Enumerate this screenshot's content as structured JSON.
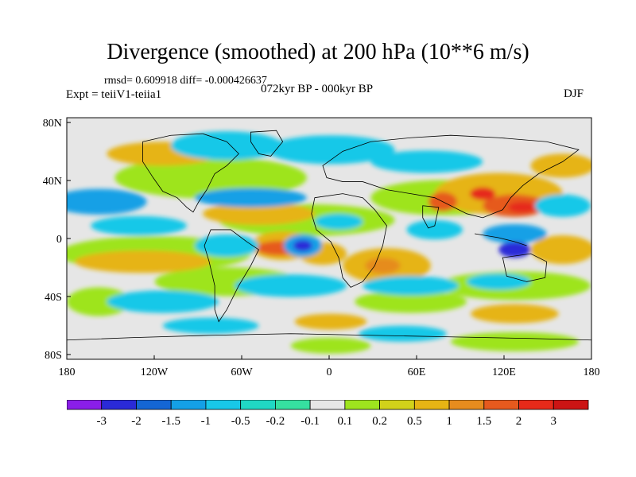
{
  "title": "Divergence (smoothed) at 200 hPa (10**6 m/s)",
  "stats": "rmsd= 0.609918 diff= -0.000426637",
  "experiment": "Expt = teiiV1-teiia1",
  "period": "072kyr BP - 000kyr BP",
  "season": "DJF",
  "x_ticks": [
    "180",
    "120W",
    "60W",
    "0",
    "60E",
    "120E",
    "180"
  ],
  "y_ticks": [
    "80N",
    "40N",
    "0",
    "40S",
    "80S"
  ],
  "colorbar": {
    "labels": [
      "-3",
      "-2",
      "-1.5",
      "-1",
      "-0.5",
      "-0.2",
      "-0.1",
      "0.1",
      "0.2",
      "0.5",
      "1",
      "1.5",
      "2",
      "3"
    ],
    "colors": [
      "#8a1ee8",
      "#2a2ad8",
      "#1466d4",
      "#14a0e6",
      "#18c8e8",
      "#20d8c4",
      "#36e0a0",
      "#e6e6e6",
      "#9ee41e",
      "#d2d21a",
      "#e6b414",
      "#e68c1e",
      "#e65a1e",
      "#e62a1a",
      "#cc1414"
    ]
  },
  "colors": {
    "background": "#e6e6e6",
    "coastline": "#000000"
  }
}
